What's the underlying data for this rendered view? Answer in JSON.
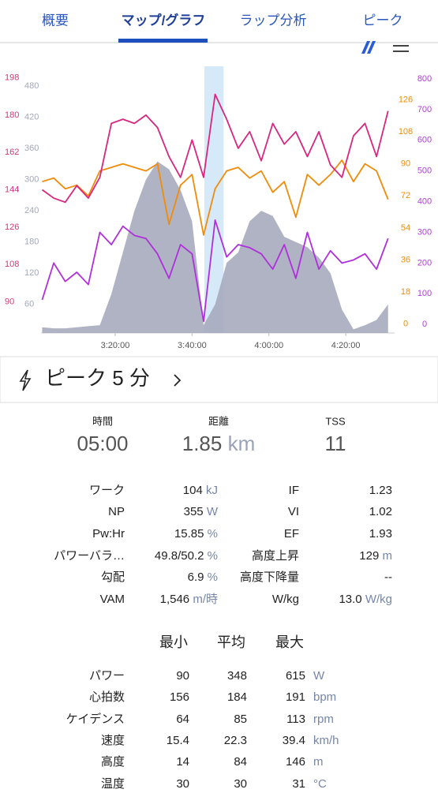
{
  "tabs": [
    "概要",
    "マップ/グラフ",
    "ラップ分析",
    "ピーク"
  ],
  "chart_data": {
    "type": "line",
    "x": [
      181,
      184,
      187,
      190,
      193,
      196,
      199,
      202,
      205,
      208,
      211,
      214,
      217,
      220,
      223,
      226,
      229,
      232,
      235,
      238,
      241,
      244,
      247,
      250,
      253,
      256,
      259,
      262,
      265,
      268,
      271
    ],
    "xlim": [
      180.7,
      272.7
    ],
    "xticks": [
      {
        "value": 200,
        "label": "3:20:00"
      },
      {
        "value": 220,
        "label": "3:40:00"
      },
      {
        "value": 240,
        "label": "4:00:00"
      },
      {
        "value": 260,
        "label": "4:20:00"
      }
    ],
    "highlight": [
      223.2,
      228.2
    ],
    "series": [
      {
        "type": "area",
        "color": "#a6abbd",
        "label_color": "#a3a7ba",
        "ylim": [
          5,
          512
        ],
        "yticks": [
          60,
          120,
          180,
          240,
          300,
          360,
          420,
          480
        ],
        "values": [
          16,
          14,
          14,
          16,
          18,
          20,
          80,
          160,
          240,
          300,
          335,
          320,
          280,
          220,
          20,
          60,
          140,
          160,
          220,
          240,
          230,
          190,
          180,
          170,
          150,
          120,
          50,
          12,
          20,
          30,
          60
        ]
      },
      {
        "type": "line",
        "color": "#f08c0a",
        "label_color": "#f08c0a",
        "ylim": [
          -5,
          143
        ],
        "yticks": [
          0,
          18,
          36,
          54,
          72,
          90,
          108,
          126
        ],
        "values": [
          80,
          82,
          76,
          78,
          72,
          86,
          88,
          90,
          88,
          86,
          90,
          56,
          78,
          84,
          50,
          76,
          86,
          88,
          82,
          86,
          74,
          80,
          60,
          84,
          78,
          84,
          92,
          80,
          90,
          86,
          70
        ]
      },
      {
        "type": "line",
        "color": "#d9267f",
        "label_color": "#d6337a",
        "ylim": [
          75,
          202
        ],
        "yticks": [
          90,
          108,
          126,
          144,
          162,
          180,
          198
        ],
        "values": [
          144,
          140,
          138,
          146,
          140,
          150,
          176,
          178,
          176,
          180,
          174,
          160,
          150,
          168,
          150,
          190,
          178,
          164,
          172,
          158,
          176,
          166,
          172,
          160,
          172,
          156,
          150,
          170,
          176,
          160,
          182
        ]
      },
      {
        "type": "line",
        "color": "#b02fdc",
        "label_color": "#b33cde",
        "ylim": [
          -28,
          831
        ],
        "yticks": [
          0,
          100,
          200,
          300,
          400,
          500,
          600,
          700,
          800
        ],
        "values": [
          80,
          200,
          140,
          170,
          130,
          300,
          260,
          320,
          290,
          280,
          230,
          150,
          260,
          230,
          10,
          340,
          220,
          260,
          250,
          230,
          180,
          260,
          150,
          300,
          180,
          240,
          200,
          210,
          230,
          180,
          280
        ]
      }
    ]
  },
  "peak": "ピーク 5 分",
  "summary": [
    {
      "label": "時間",
      "value": "05:00"
    },
    {
      "label": "距離",
      "value": "1.85",
      "unit": "km"
    },
    {
      "label": "TSS",
      "value": "11"
    }
  ],
  "metrics": {
    "left": [
      {
        "label": "ワーク",
        "value": "104",
        "unit": "kJ"
      },
      {
        "label": "NP",
        "value": "355",
        "unit": "W"
      },
      {
        "label": "Pw:Hr",
        "value": "15.85",
        "unit": "%"
      },
      {
        "label": "パワーバラ…",
        "value": "49.8/50.2",
        "unit": "%"
      },
      {
        "label": "勾配",
        "value": "6.9",
        "unit": "%"
      },
      {
        "label": "VAM",
        "value": "1,546",
        "unit": "m/時"
      }
    ],
    "right": [
      {
        "label": "IF",
        "value": "1.23"
      },
      {
        "label": "VI",
        "value": "1.02"
      },
      {
        "label": "EF",
        "value": "1.93"
      },
      {
        "label": "高度上昇",
        "value": "129",
        "unit": "m"
      },
      {
        "label": "高度下降量",
        "value": "--"
      },
      {
        "label": "W/kg",
        "value": "13.0",
        "unit": "W/kg"
      }
    ]
  },
  "stats": {
    "header": [
      "最小",
      "平均",
      "最大"
    ],
    "rows": [
      {
        "label": "パワー",
        "values": [
          "90",
          "348",
          "615"
        ],
        "unit": "W"
      },
      {
        "label": "心拍数",
        "values": [
          "156",
          "184",
          "191"
        ],
        "unit": "bpm"
      },
      {
        "label": "ケイデンス",
        "values": [
          "64",
          "85",
          "113"
        ],
        "unit": "rpm"
      },
      {
        "label": "速度",
        "values": [
          "15.4",
          "22.3",
          "39.4"
        ],
        "unit": "km/h"
      },
      {
        "label": "高度",
        "values": [
          "14",
          "84",
          "146"
        ],
        "unit": "m"
      },
      {
        "label": "温度",
        "values": [
          "30",
          "30",
          "31"
        ],
        "unit": "°C"
      }
    ]
  }
}
